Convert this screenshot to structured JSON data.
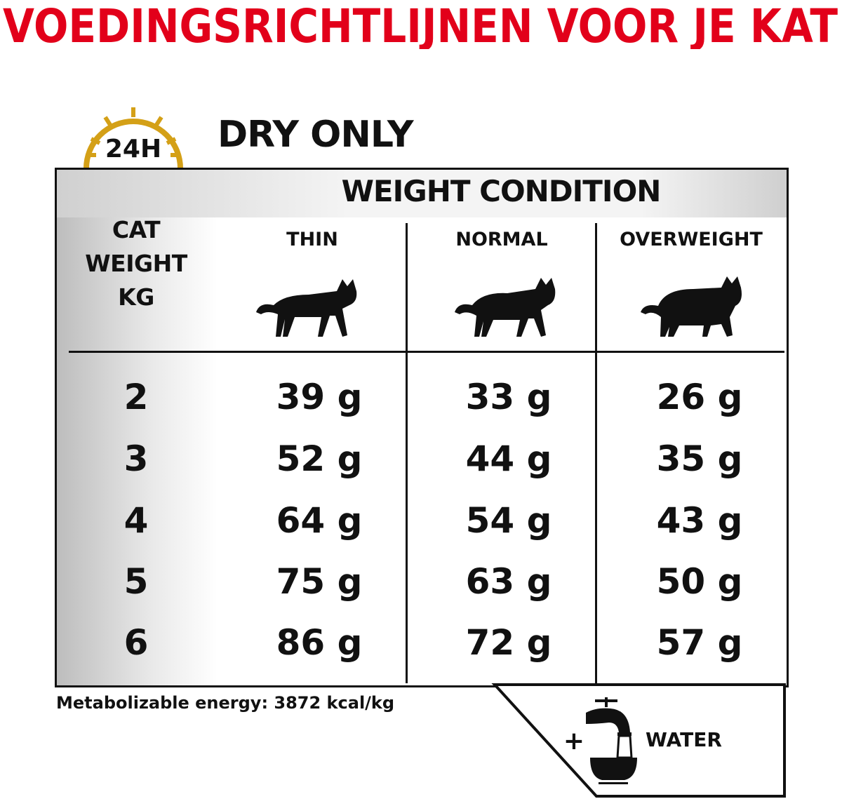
{
  "title": "VOEDINGSRICHTLIJNEN VOOR JE KAT",
  "title_color": "#e2001a",
  "clock_icon": {
    "name": "24h-clock-icon",
    "label": "24H",
    "color": "#d4a017"
  },
  "heading": "DRY ONLY",
  "table": {
    "group_header": "WEIGHT CONDITION",
    "row_header": [
      "CAT",
      "WEIGHT",
      "KG"
    ],
    "columns": [
      "THIN",
      "NORMAL",
      "OVERWEIGHT"
    ],
    "rows": [
      {
        "kg": "2",
        "values": [
          "39 g",
          "33 g",
          "26 g"
        ]
      },
      {
        "kg": "3",
        "values": [
          "52 g",
          "44 g",
          "35 g"
        ]
      },
      {
        "kg": "4",
        "values": [
          "64 g",
          "54 g",
          "43 g"
        ]
      },
      {
        "kg": "5",
        "values": [
          "75 g",
          "63 g",
          "50 g"
        ]
      },
      {
        "kg": "6",
        "values": [
          "86 g",
          "72 g",
          "57 g"
        ]
      }
    ]
  },
  "footnote": "Metabolizable energy: 3872 kcal/kg",
  "water": {
    "plus": "+",
    "label": "WATER",
    "icon": "water-tap-bowl-icon"
  }
}
